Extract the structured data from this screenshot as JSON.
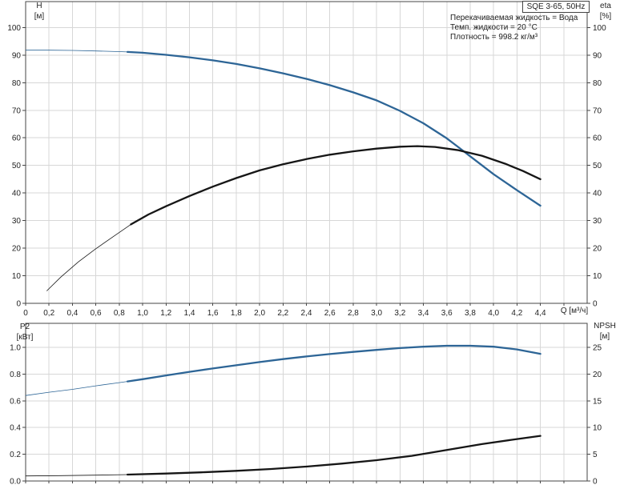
{
  "header": {
    "model_badge": "SQE 3-65, 50Hz",
    "info_lines": [
      "Перекачиваемая жидкость = Вода",
      "Темп. жидкости = 20 °C",
      "Плотность = 998.2 кг/м³"
    ]
  },
  "colors": {
    "curve_blue": "#2d6596",
    "curve_black": "#161616",
    "grid": "#d7d7d7",
    "axis": "#454545",
    "text": "#242424",
    "background": "#ffffff"
  },
  "chart_data": [
    {
      "type": "line",
      "name": "head-efficiency-chart",
      "x_axis": {
        "label": "Q [м³/ч]",
        "range": [
          0,
          4.8
        ],
        "tick_values": [
          0,
          0.2,
          0.4,
          0.6,
          0.8,
          1.0,
          1.2,
          1.4,
          1.6,
          1.8,
          2.0,
          2.2,
          2.4,
          2.6,
          2.8,
          3.0,
          3.2,
          3.4,
          3.6,
          3.8,
          4.0,
          4.2,
          4.4,
          4.6
        ],
        "tick_labels": [
          "0",
          "0,2",
          "0,4",
          "0,6",
          "0,8",
          "1,0",
          "1,2",
          "1,4",
          "1,6",
          "1,8",
          "2,0",
          "2,2",
          "2,4",
          "2,6",
          "2,8",
          "3,0",
          "3,2",
          "3,4",
          "3,6",
          "3,8",
          "4,0",
          "4,2",
          "4,4",
          ""
        ],
        "show_tick_labels": true
      },
      "left_axis": {
        "label": "H",
        "unit": "[м]",
        "range": [
          0,
          109.4
        ],
        "tick_values": [
          0,
          10,
          20,
          30,
          40,
          50,
          60,
          70,
          80,
          90,
          100
        ],
        "tick_labels": [
          "0",
          "10",
          "20",
          "30",
          "40",
          "50",
          "60",
          "70",
          "80",
          "90",
          "100"
        ]
      },
      "right_axis": {
        "label": "eta",
        "unit": "[%]",
        "range": [
          0,
          109.4
        ],
        "tick_values": [
          0,
          10,
          20,
          30,
          40,
          50,
          60,
          70,
          80,
          90,
          100
        ],
        "tick_labels": [
          "0",
          "10",
          "20",
          "30",
          "40",
          "50",
          "60",
          "70",
          "80",
          "90",
          "100"
        ]
      },
      "series": [
        {
          "key": "h-curve",
          "name": "H",
          "axis": "left",
          "color": "#2d6596",
          "thick_from": 0.87,
          "width_thin": 0.8,
          "width_thick": 2.3,
          "points": [
            [
              0,
              91.8
            ],
            [
              0.2,
              91.8
            ],
            [
              0.4,
              91.7
            ],
            [
              0.6,
              91.5
            ],
            [
              0.8,
              91.25
            ],
            [
              0.87,
              91.15
            ],
            [
              1.0,
              90.85
            ],
            [
              1.2,
              90.1
            ],
            [
              1.4,
              89.2
            ],
            [
              1.6,
              88.1
            ],
            [
              1.8,
              86.8
            ],
            [
              2.0,
              85.2
            ],
            [
              2.2,
              83.4
            ],
            [
              2.4,
              81.4
            ],
            [
              2.6,
              79.1
            ],
            [
              2.8,
              76.5
            ],
            [
              3.0,
              73.6
            ],
            [
              3.2,
              69.8
            ],
            [
              3.4,
              65.3
            ],
            [
              3.6,
              59.8
            ],
            [
              3.7,
              56.6
            ],
            [
              3.8,
              53.3
            ],
            [
              4.0,
              46.8
            ],
            [
              4.2,
              41.0
            ],
            [
              4.4,
              35.4
            ]
          ]
        },
        {
          "key": "eta-curve",
          "name": "eta",
          "axis": "right",
          "color": "#161616",
          "thick_from": 0.9,
          "width_thin": 0.8,
          "width_thick": 2.3,
          "points": [
            [
              0.18,
              4.5
            ],
            [
              0.3,
              9.5
            ],
            [
              0.45,
              15.0
            ],
            [
              0.6,
              19.8
            ],
            [
              0.75,
              24.2
            ],
            [
              0.9,
              28.6
            ],
            [
              1.05,
              32.2
            ],
            [
              1.2,
              35.2
            ],
            [
              1.4,
              38.9
            ],
            [
              1.6,
              42.3
            ],
            [
              1.8,
              45.4
            ],
            [
              2.0,
              48.2
            ],
            [
              2.2,
              50.4
            ],
            [
              2.4,
              52.3
            ],
            [
              2.6,
              53.9
            ],
            [
              2.8,
              55.1
            ],
            [
              3.0,
              56.1
            ],
            [
              3.2,
              56.8
            ],
            [
              3.35,
              57.0
            ],
            [
              3.5,
              56.7
            ],
            [
              3.7,
              55.5
            ],
            [
              3.9,
              53.5
            ],
            [
              4.1,
              50.6
            ],
            [
              4.25,
              48.0
            ],
            [
              4.4,
              45.0
            ]
          ]
        }
      ]
    },
    {
      "type": "line",
      "name": "power-npsh-chart",
      "x_axis": {
        "label": "Q [м³/ч]",
        "range": [
          0,
          4.8
        ],
        "tick_values": [
          0,
          0.2,
          0.4,
          0.6,
          0.8,
          1.0,
          1.2,
          1.4,
          1.6,
          1.8,
          2.0,
          2.2,
          2.4,
          2.6,
          2.8,
          3.0,
          3.2,
          3.4,
          3.6,
          3.8,
          4.0,
          4.2,
          4.4,
          4.6
        ],
        "tick_labels": [
          "",
          "",
          "",
          "",
          "",
          "",
          "",
          "",
          "",
          "",
          "",
          "",
          "",
          "",
          "",
          "",
          "",
          "",
          "",
          "",
          "",
          "",
          "",
          ""
        ],
        "show_tick_labels": false
      },
      "left_axis": {
        "label": "P2",
        "unit": "[кВт]",
        "range": [
          0,
          1.18
        ],
        "tick_values": [
          0,
          0.2,
          0.4,
          0.6,
          0.8,
          1.0
        ],
        "tick_labels": [
          "0.0",
          "0.2",
          "0.4",
          "0.6",
          "0.8",
          "1.0"
        ]
      },
      "right_axis": {
        "label": "NPSH",
        "unit": "[м]",
        "range": [
          0,
          29.5
        ],
        "tick_values": [
          0,
          5,
          10,
          15,
          20,
          25
        ],
        "tick_labels": [
          "0",
          "5",
          "10",
          "15",
          "20",
          "25"
        ]
      },
      "series": [
        {
          "key": "p2-curve",
          "name": "P2",
          "axis": "left",
          "color": "#2d6596",
          "thick_from": 0.87,
          "width_thin": 0.8,
          "width_thick": 2.3,
          "points": [
            [
              0,
              0.64
            ],
            [
              0.2,
              0.664
            ],
            [
              0.4,
              0.686
            ],
            [
              0.6,
              0.712
            ],
            [
              0.8,
              0.736
            ],
            [
              0.87,
              0.745
            ],
            [
              1.0,
              0.762
            ],
            [
              1.2,
              0.79
            ],
            [
              1.4,
              0.817
            ],
            [
              1.6,
              0.842
            ],
            [
              1.8,
              0.866
            ],
            [
              2.0,
              0.89
            ],
            [
              2.2,
              0.912
            ],
            [
              2.4,
              0.932
            ],
            [
              2.6,
              0.95
            ],
            [
              2.8,
              0.966
            ],
            [
              3.0,
              0.981
            ],
            [
              3.2,
              0.995
            ],
            [
              3.4,
              1.005
            ],
            [
              3.6,
              1.012
            ],
            [
              3.8,
              1.012
            ],
            [
              4.0,
              1.005
            ],
            [
              4.2,
              0.985
            ],
            [
              4.4,
              0.952
            ]
          ]
        },
        {
          "key": "npsh-curve",
          "name": "NPSH",
          "axis": "right",
          "color": "#161616",
          "thick_from": 0.87,
          "width_thin": 0.8,
          "width_thick": 2.3,
          "points": [
            [
              0,
              0.95
            ],
            [
              0.3,
              1.0
            ],
            [
              0.6,
              1.1
            ],
            [
              0.87,
              1.2
            ],
            [
              1.2,
              1.4
            ],
            [
              1.5,
              1.62
            ],
            [
              1.8,
              1.9
            ],
            [
              2.1,
              2.25
            ],
            [
              2.4,
              2.7
            ],
            [
              2.7,
              3.25
            ],
            [
              3.0,
              3.9
            ],
            [
              3.3,
              4.7
            ],
            [
              3.6,
              5.8
            ],
            [
              3.9,
              6.9
            ],
            [
              4.15,
              7.7
            ],
            [
              4.4,
              8.45
            ]
          ]
        }
      ]
    }
  ]
}
